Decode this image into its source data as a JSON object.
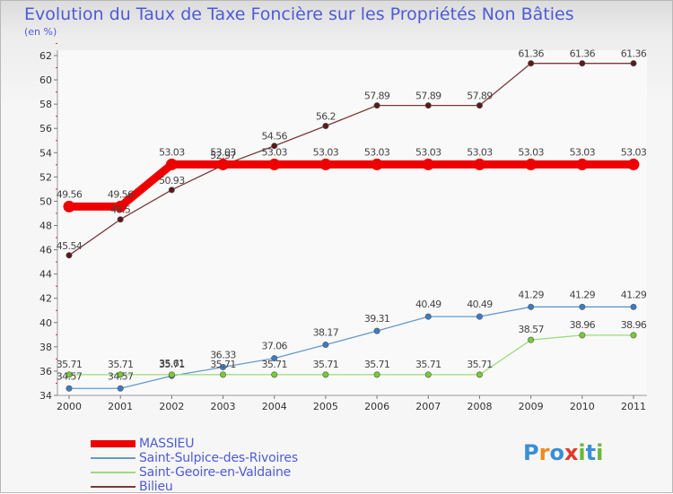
{
  "chart_data": {
    "type": "line",
    "title": "Evolution du Taux de Taxe Foncière sur les Propriétés Non Bâties",
    "subtitle": "(en %)",
    "categories": [
      "2000",
      "2001",
      "2002",
      "2003",
      "2004",
      "2005",
      "2006",
      "2007",
      "2008",
      "2009",
      "2010",
      "2011"
    ],
    "ylim": [
      34,
      62
    ],
    "yticks": [
      34,
      36,
      38,
      40,
      42,
      44,
      46,
      48,
      50,
      52,
      54,
      56,
      58,
      60,
      62
    ],
    "grid": false,
    "legend_position": "bottom-left",
    "series": [
      {
        "name": "MASSIEU",
        "color": "#ee0000",
        "values": [
          49.56,
          49.56,
          53.03,
          53.03,
          53.03,
          53.03,
          53.03,
          53.03,
          53.03,
          53.03,
          53.03,
          53.03
        ],
        "labels": [
          "49.56",
          "49.56",
          "53.03",
          "53.03",
          "53.03",
          "53.03",
          "53.03",
          "53.03",
          "53.03",
          "53.03",
          "53.03",
          "53.03"
        ]
      },
      {
        "name": "Saint-Sulpice-des-Rivoires",
        "color": "#6699cc",
        "marker": "#3a7cc4",
        "values": [
          34.57,
          34.57,
          35.61,
          36.33,
          37.06,
          38.17,
          39.31,
          40.49,
          40.49,
          41.29,
          41.29,
          41.29
        ],
        "labels": [
          "34.57",
          "34.57",
          "35.61",
          "36.33",
          "37.06",
          "38.17",
          "39.31",
          "40.49",
          "40.49",
          "41.29",
          "41.29",
          "41.29"
        ]
      },
      {
        "name": "Saint-Geoire-en-Valdaine",
        "color": "#99dd77",
        "marker": "#77cc33",
        "values": [
          35.71,
          35.71,
          35.71,
          35.71,
          35.71,
          35.71,
          35.71,
          35.71,
          35.71,
          38.57,
          38.96,
          38.96
        ],
        "labels": [
          "35.71",
          "35.71",
          "35.71",
          "35.71",
          "35.71",
          "35.71",
          "35.71",
          "35.71",
          "35.71",
          "38.57",
          "38.96",
          "38.96"
        ]
      },
      {
        "name": "Bilieu",
        "color": "#7a3a3a",
        "marker": "#5a1a1a",
        "values": [
          45.54,
          48.5,
          50.93,
          52.97,
          54.56,
          56.2,
          57.89,
          57.89,
          57.89,
          61.36,
          61.36,
          61.36
        ],
        "labels": [
          "45.54",
          "48.5",
          "50.93",
          "52.97",
          "54.56",
          "56.2",
          "57.89",
          "57.89",
          "57.89",
          "61.36",
          "61.36",
          "61.36"
        ]
      }
    ]
  },
  "logo": {
    "letters": [
      "P",
      "r",
      "o",
      "x",
      "i",
      "t",
      "i"
    ],
    "colors": [
      "#3a8fd6",
      "#f08a1c",
      "#3a8fd6",
      "#e03a2a",
      "#6ab83a",
      "#3a8fd6",
      "#6ab83a"
    ]
  }
}
